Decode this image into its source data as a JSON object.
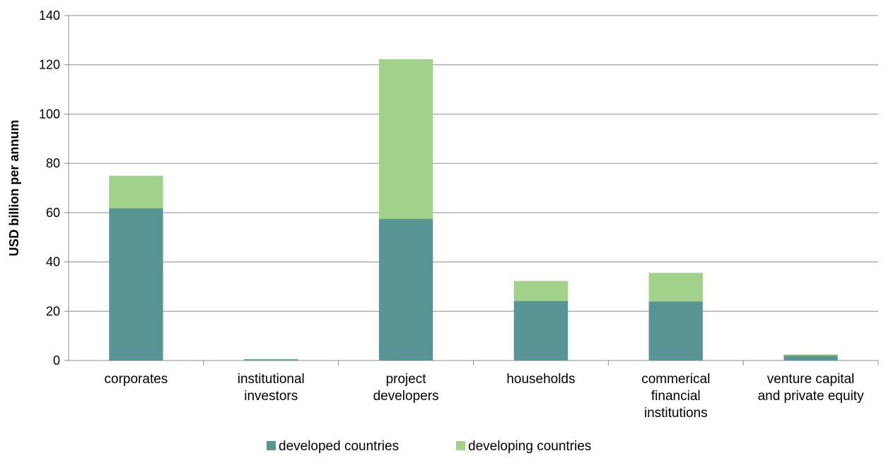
{
  "chart_data": {
    "type": "bar",
    "stacked": true,
    "title": "",
    "xlabel": "",
    "ylabel": "USD billion per annum",
    "ylim": [
      0,
      140
    ],
    "yticks": [
      0,
      20,
      40,
      60,
      80,
      100,
      120,
      140
    ],
    "grid": true,
    "legend_position": "bottom",
    "categories": [
      [
        "corporates"
      ],
      [
        "institutional",
        "investors"
      ],
      [
        "project",
        "developers"
      ],
      [
        "households"
      ],
      [
        "commerical",
        "financial",
        "institutions"
      ],
      [
        "venture capital",
        "and private equity"
      ]
    ],
    "series": [
      {
        "name": "developed countries",
        "color": "#599594",
        "values": [
          61.8,
          0.5,
          57.5,
          24.2,
          24.0,
          2.0
        ]
      },
      {
        "name": "developing countries",
        "color": "#a0d28c",
        "values": [
          13.2,
          0.1,
          64.8,
          8.1,
          11.6,
          0.5
        ]
      }
    ]
  }
}
